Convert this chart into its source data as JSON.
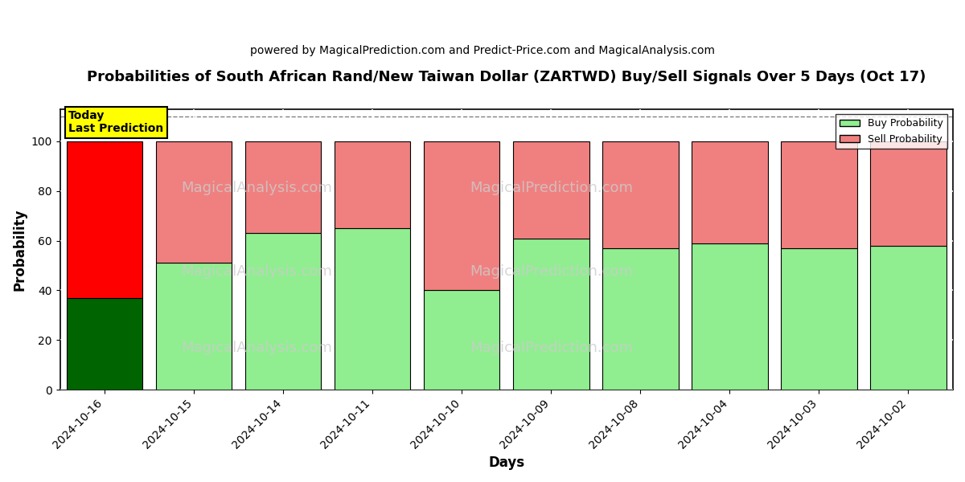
{
  "title": "Probabilities of South African Rand/New Taiwan Dollar (ZARTWD) Buy/Sell Signals Over 5 Days (Oct 17)",
  "subtitle": "powered by MagicalPrediction.com and Predict-Price.com and MagicalAnalysis.com",
  "xlabel": "Days",
  "ylabel": "Probability",
  "categories": [
    "2024-10-16",
    "2024-10-15",
    "2024-10-14",
    "2024-10-11",
    "2024-10-10",
    "2024-10-09",
    "2024-10-08",
    "2024-10-04",
    "2024-10-03",
    "2024-10-02"
  ],
  "buy_values": [
    37,
    51,
    63,
    65,
    40,
    61,
    57,
    59,
    57,
    58
  ],
  "sell_values": [
    63,
    49,
    37,
    35,
    60,
    39,
    43,
    41,
    43,
    42
  ],
  "buy_color_today": "#006400",
  "sell_color_today": "#FF0000",
  "buy_color_normal": "#90EE90",
  "sell_color_normal": "#F08080",
  "today_label_bg": "#FFFF00",
  "today_label_text": "Today\nLast Prediction",
  "legend_buy": "Buy Probability",
  "legend_sell": "Sell Probability",
  "ylim": [
    0,
    113
  ],
  "yticks": [
    0,
    20,
    40,
    60,
    80,
    100
  ],
  "dashed_line_y": 110,
  "background_color": "#ffffff",
  "grid_color": "#cccccc",
  "bar_width": 0.85
}
